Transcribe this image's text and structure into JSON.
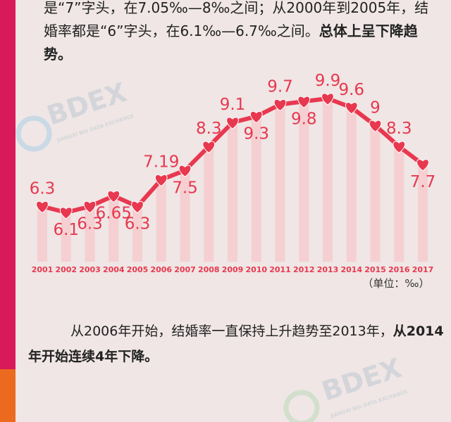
{
  "intro_text": {
    "normal": "是“7”字头，在7.05‰—8‰之间；从2000年到2005年，结婚率都是“6”字头，在6.1‰—6.7‰之间。",
    "bold": "总体上呈下降趋势。"
  },
  "chart_data": {
    "type": "line",
    "categories": [
      "2001",
      "2002",
      "2003",
      "2004",
      "2005",
      "2006",
      "2007",
      "2008",
      "2009",
      "2010",
      "2011",
      "2012",
      "2013",
      "2014",
      "2015",
      "2016",
      "2017"
    ],
    "series": [
      {
        "color": "#e8384f",
        "values": [
          6.3,
          6.1,
          6.3,
          6.65,
          6.3,
          7.19,
          7.5,
          8.3,
          9.1,
          9.3,
          9.7,
          9.8,
          9.9,
          9.6,
          9,
          8.3,
          7.7
        ]
      }
    ],
    "unit": "（单位：‰）"
  },
  "outro_text": {
    "normal": "从2006年开始，结婚率一直保持上升趋势至2013年，",
    "bold": "从2014年开始连续4年下降。"
  },
  "watermark": {
    "logo": "BDEX",
    "caption": "JIANGXI BIG DATA EXCHANGE"
  }
}
